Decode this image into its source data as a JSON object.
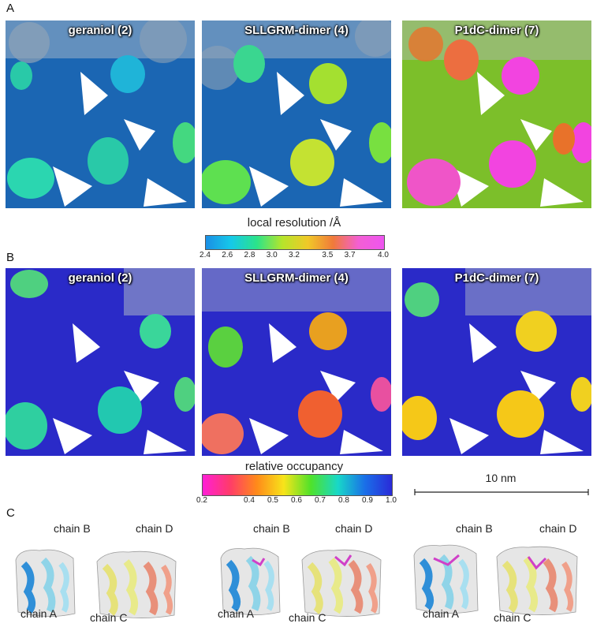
{
  "panels": {
    "A": {
      "letter": "A",
      "titles": [
        "geraniol (2)",
        "SLLGRM-dimer (4)",
        "P1dC-dimer (7)"
      ]
    },
    "B": {
      "letter": "B",
      "titles": [
        "geraniol (2)",
        "SLLGRM-dimer (4)",
        "P1dC-dimer (7)"
      ]
    },
    "C": {
      "letter": "C",
      "groups": [
        {
          "b": "chain B",
          "d": "chain D",
          "a": "chain A",
          "c": "chain C"
        },
        {
          "b": "chain B",
          "d": "chain D",
          "a": "chain A",
          "c": "chain C"
        },
        {
          "b": "chain B",
          "d": "chain D",
          "a": "chain A",
          "c": "chain C"
        }
      ]
    }
  },
  "colorbar_resolution": {
    "title": "local resolution /Å",
    "ticks": [
      "2.4",
      "2.6",
      "2.8",
      "3.0",
      "3.2",
      "3.5",
      "3.7",
      "4.0"
    ],
    "tick_values": [
      2.4,
      2.6,
      2.8,
      3.0,
      3.2,
      3.5,
      3.7,
      4.0
    ],
    "range": [
      2.4,
      4.0
    ],
    "colors": [
      "#1a8fe6",
      "#16c9e8",
      "#2be38a",
      "#b5e52b",
      "#f0c928",
      "#f07a3a",
      "#f35fd4",
      "#ee55f0"
    ]
  },
  "colorbar_occupancy": {
    "title": "relative occupancy",
    "ticks": [
      "0.2",
      "0.4",
      "0.5",
      "0.6",
      "0.7",
      "0.8",
      "0.9",
      "1.0"
    ],
    "tick_values": [
      0.2,
      0.4,
      0.5,
      0.6,
      0.7,
      0.8,
      0.9,
      1.0
    ],
    "range": [
      0.2,
      1.0
    ],
    "colors": [
      "#ff1fd6",
      "#ff3b6a",
      "#ff8a1a",
      "#f7e41a",
      "#4fe22a",
      "#18d8c8",
      "#1a6fe8",
      "#2a2ad8"
    ]
  },
  "scalebar": {
    "label": "10 nm"
  }
}
